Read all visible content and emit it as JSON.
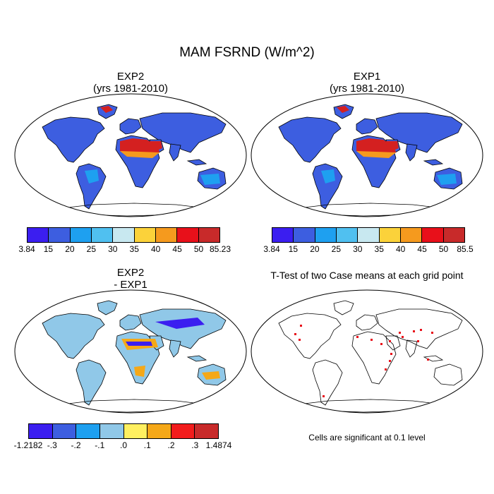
{
  "main_title": "MAM FSRND (W/m^2)",
  "panels": {
    "top_left": {
      "title_line1": "EXP2",
      "title_line2": "(yrs 1981-2010)"
    },
    "top_right": {
      "title_line1": "EXP1",
      "title_line2": "(yrs 1981-2010)"
    },
    "bottom_left": {
      "title_line1": "EXP2",
      "title_line2": "- EXP1"
    },
    "bottom_right": {
      "title_line1": "T-Test of two Case means at each grid point"
    }
  },
  "colorbars": {
    "exp2": {
      "labels": [
        "3.84",
        "15",
        "20",
        "25",
        "30",
        "35",
        "40",
        "45",
        "50",
        "85.23"
      ],
      "colors": [
        "#3b1ef0",
        "#3d5ee0",
        "#1ea0f0",
        "#50c0f0",
        "#c8e8f0",
        "#fbd23a",
        "#f59a1e",
        "#e8101a",
        "#c82a2a"
      ]
    },
    "exp1": {
      "labels": [
        "3.84",
        "15",
        "20",
        "25",
        "30",
        "35",
        "40",
        "45",
        "50",
        "85.5"
      ],
      "colors": [
        "#3b1ef0",
        "#3d5ee0",
        "#1ea0f0",
        "#50c0f0",
        "#c8e8f0",
        "#fbd23a",
        "#f59a1e",
        "#e8101a",
        "#c82a2a"
      ]
    },
    "diff": {
      "labels": [
        "-1.2182",
        "-.3",
        "-.2",
        "-.1",
        ".0",
        ".1",
        ".2",
        ".3",
        "1.4874"
      ],
      "colors": [
        "#3b1ef0",
        "#3d5ee0",
        "#1ea0f0",
        "#90c8e8",
        "#fff060",
        "#f5a818",
        "#f21c1c",
        "#c82a2a"
      ]
    }
  },
  "note": "Cells are significant at 0.1 level",
  "map_colors": {
    "land_base": "#3d5ee0",
    "land_mid": "#1ea0f0",
    "desert_hot": "#d42020",
    "desert_warm": "#f59a1e",
    "diff_land": "#90c8e8",
    "diff_pos": "#f5a818",
    "diff_neg": "#3b1ef0",
    "signif": "#e8101a"
  }
}
